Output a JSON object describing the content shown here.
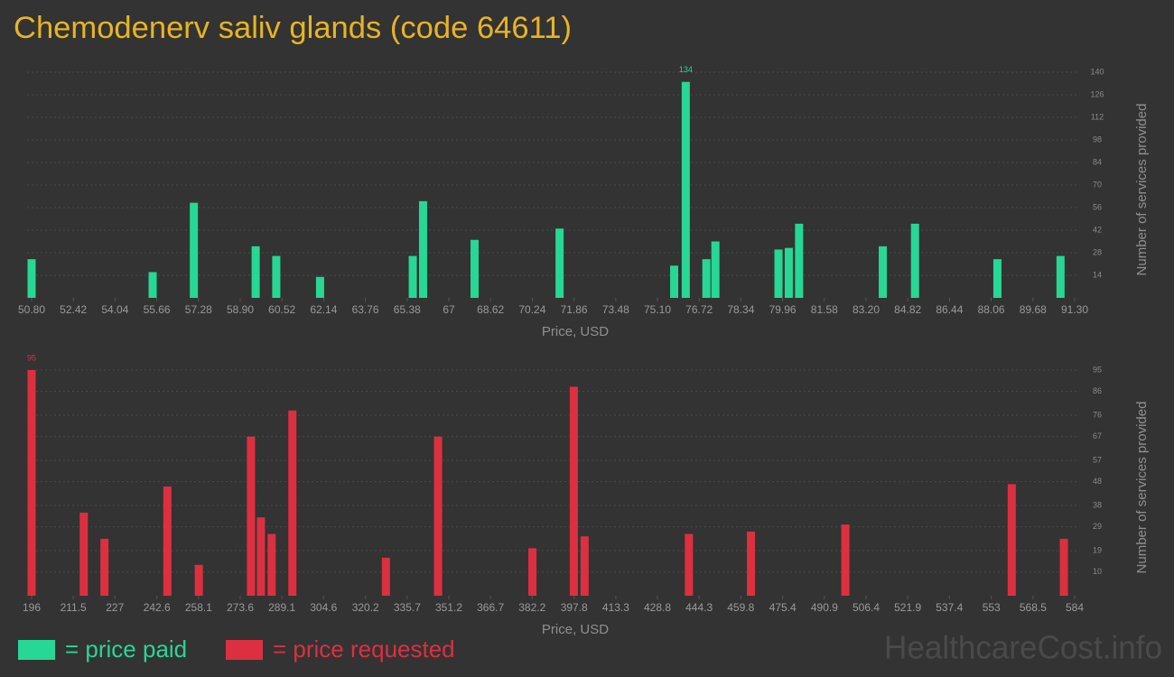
{
  "title": "Chemodenerv saliv glands (code 64611)",
  "watermark": "HealthcareCost.info",
  "chart_data": [
    {
      "type": "bar",
      "x_label": "Price, USD",
      "y_label": "Number of services provided",
      "grid": true,
      "xlim": [
        50.8,
        91.3
      ],
      "xticks": [
        {
          "value": 50.8,
          "label": "50.80"
        },
        {
          "value": 52.42,
          "label": "52.42"
        },
        {
          "value": 54.04,
          "label": "54.04"
        },
        {
          "value": 55.66,
          "label": "55.66"
        },
        {
          "value": 57.28,
          "label": "57.28"
        },
        {
          "value": 58.9,
          "label": "58.90"
        },
        {
          "value": 60.52,
          "label": "60.52"
        },
        {
          "value": 62.14,
          "label": "62.14"
        },
        {
          "value": 63.76,
          "label": "63.76"
        },
        {
          "value": 65.38,
          "label": "65.38"
        },
        67,
        68.62,
        70.24,
        71.86,
        73.48,
        {
          "value": 75.1,
          "label": "75.10"
        },
        76.72,
        78.34,
        79.96,
        81.58,
        {
          "value": 83.2,
          "label": "83.20"
        },
        84.82,
        86.44,
        88.06,
        89.68,
        {
          "value": 91.3,
          "label": "91.30"
        }
      ],
      "ylim": [
        0,
        140
      ],
      "yticks": [
        14,
        28,
        42,
        56,
        70,
        84,
        98,
        112,
        126,
        140
      ],
      "series": [
        {
          "name": "= price paid",
          "color": "#27d795",
          "x": [
            50.8,
            55.5,
            57.1,
            59.5,
            60.3,
            62.0,
            65.6,
            66.0,
            68.0,
            71.3,
            75.75,
            76.2,
            77.0,
            77.35,
            79.8,
            80.2,
            80.6,
            83.85,
            85.1,
            88.3,
            90.75
          ],
          "values": [
            24,
            16,
            59,
            32,
            26,
            13,
            26,
            60,
            36,
            43,
            20,
            134,
            24,
            35,
            30,
            31,
            46,
            32,
            46,
            24,
            26
          ]
        }
      ]
    },
    {
      "type": "bar",
      "x_label": "Price, USD",
      "y_label": "Number of services provided",
      "grid": true,
      "xlim": [
        196,
        584
      ],
      "xticks": [
        196,
        211.5,
        227,
        242.6,
        258.1,
        273.6,
        289.1,
        304.6,
        320.2,
        335.7,
        351.2,
        366.7,
        382.2,
        397.8,
        413.3,
        428.8,
        444.3,
        459.8,
        475.4,
        490.9,
        506.4,
        521.9,
        537.4,
        553,
        568.5,
        584
      ],
      "ylim": [
        0,
        95
      ],
      "yticks": [
        10,
        19,
        29,
        38,
        48,
        57,
        67,
        76,
        86,
        95
      ],
      "series": [
        {
          "name": "= price requested",
          "color": "#dc3040",
          "x": [
            196,
            215.4,
            223.1,
            246.5,
            258.2,
            277.6,
            281.3,
            285.3,
            293,
            327.8,
            347.2,
            382.3,
            397.7,
            401.7,
            440.5,
            463.6,
            498.7,
            560.6,
            580
          ],
          "values": [
            95,
            35,
            24,
            46,
            13,
            67,
            33,
            26,
            78,
            16,
            67,
            20,
            88,
            25,
            26,
            27,
            30,
            47,
            24
          ]
        }
      ]
    }
  ]
}
